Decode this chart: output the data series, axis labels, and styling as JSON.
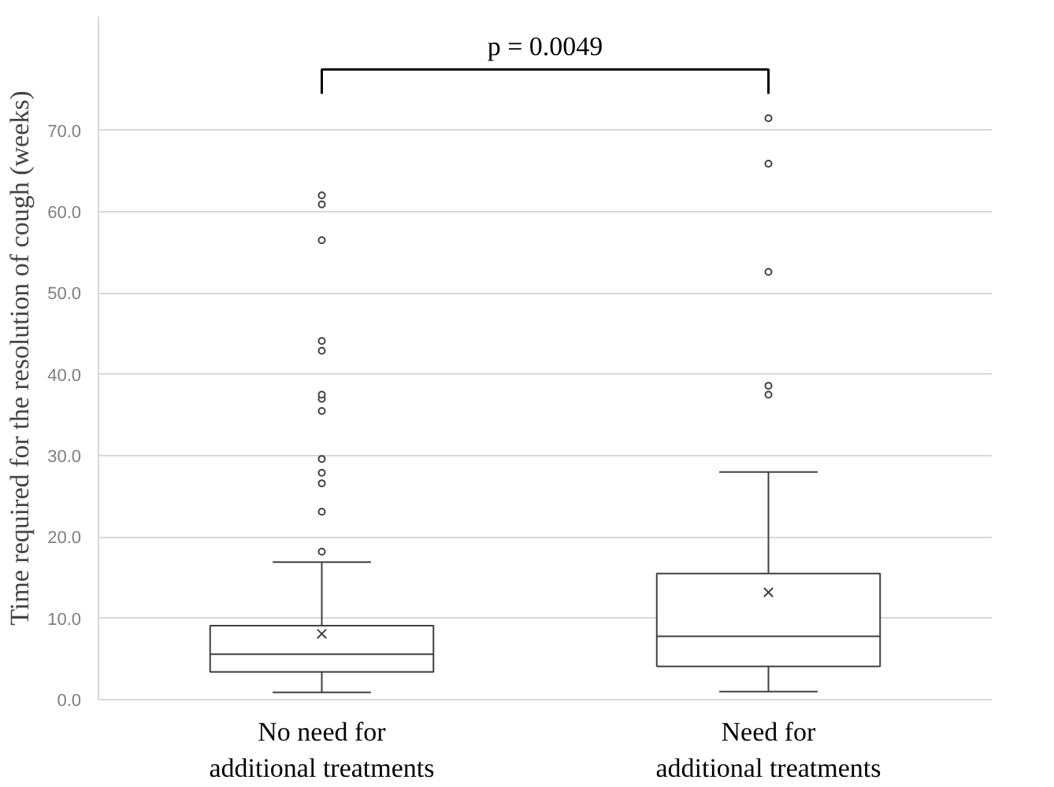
{
  "chart_data": {
    "type": "box",
    "ylabel": "Time required for the resolution of cough (weeks)",
    "categories": [
      "No need for\nadditional treatments",
      "Need for\nadditional treatments"
    ],
    "boxes": [
      {
        "low": 0.9,
        "q1": 3.4,
        "median": 5.6,
        "q3": 9.1,
        "high": 16.9,
        "mean": 8.1,
        "outliers": [
          18.2,
          23.1,
          26.6,
          27.9,
          29.6,
          35.5,
          37.0,
          37.5,
          42.9,
          44.1,
          56.5,
          60.9,
          62.0
        ]
      },
      {
        "low": 1.0,
        "q1": 4.1,
        "median": 7.8,
        "q3": 15.5,
        "high": 28.0,
        "mean": 13.2,
        "outliers": [
          37.5,
          38.6,
          52.6,
          65.9,
          71.5
        ]
      }
    ],
    "color": "#404040",
    "ylim": [
      0,
      84
    ],
    "yticks": [
      {
        "value": 0,
        "label": "0.0"
      },
      {
        "value": 10,
        "label": "10.0"
      },
      {
        "value": 20,
        "label": "20.0"
      },
      {
        "value": 30,
        "label": "30.0"
      },
      {
        "value": 40,
        "label": "40.0"
      },
      {
        "value": 50,
        "label": "50.0"
      },
      {
        "value": 60,
        "label": "60.0"
      },
      {
        "value": 70,
        "label": "70.0"
      }
    ],
    "grid": "y",
    "annotations": [
      "p = 0.0049"
    ]
  }
}
